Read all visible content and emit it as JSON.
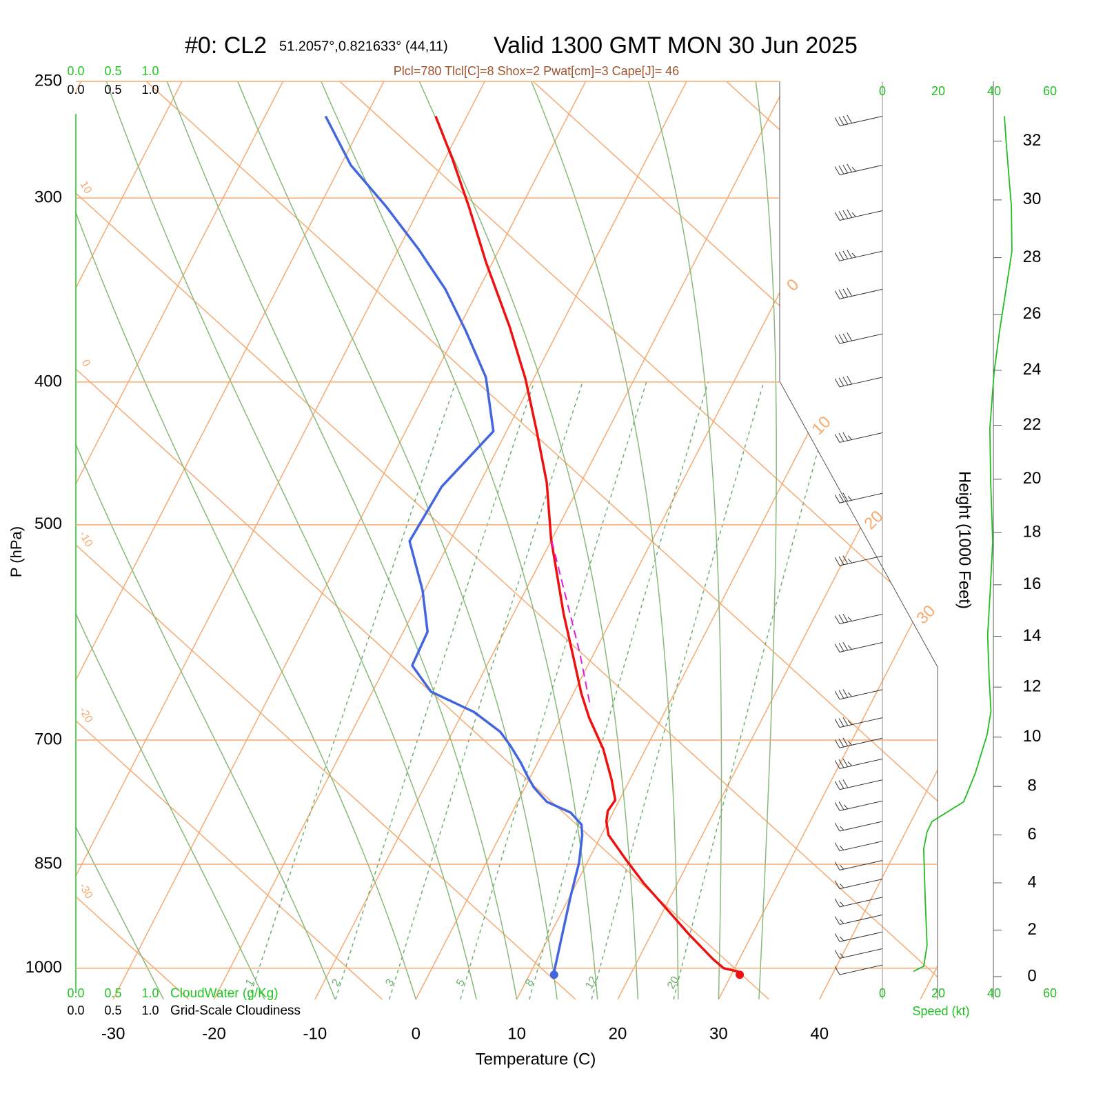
{
  "chart_data": {
    "type": "skewt",
    "title": "#0: CL2",
    "location": "51.2057°,0.821633° (44,11)",
    "valid": "Valid 1300 GMT MON 30 Jun 2025",
    "indices": "Plcl=780 Tlcl[C]=8 Shox=2 Pwat[cm]=3 Cape[J]= 46",
    "x_label": "Temperature (C)",
    "y_label": "P (hPa)",
    "xlim": [
      -33.7,
      51.7
    ],
    "ylim": [
      1050,
      250
    ],
    "log_y": true,
    "xticks": [
      -30,
      -20,
      -10,
      0,
      10,
      20,
      30,
      40
    ],
    "yticks": [
      1000,
      850,
      700,
      500,
      400,
      300,
      250
    ],
    "series": [
      {
        "color": "#ee1111",
        "pressure": [
          1006,
          1000,
          986,
          949,
          904,
          876,
          843,
          812,
          795,
          782,
          769,
          745,
          710,
          676,
          651,
          613,
          575,
          539,
          511,
          468,
          432,
          398,
          367,
          332,
          304,
          282,
          264
        ],
        "values": [
          30.7,
          28.9,
          27.4,
          23.8,
          19.5,
          16.7,
          13.6,
          10.7,
          9.8,
          9.4,
          9.6,
          8.2,
          5.8,
          2.8,
          0.8,
          -2.0,
          -5.0,
          -7.8,
          -10.1,
          -13.4,
          -17.0,
          -20.8,
          -25.0,
          -30.6,
          -35.2,
          -39.3,
          -43.1
        ]
      },
      {
        "color": "#4466dd",
        "pressure": [
          1006,
          949,
          895,
          848,
          812,
          799,
          784,
          771,
          754,
          741,
          725,
          706,
          691,
          670,
          649,
          623,
          591,
          554,
          513,
          471,
          432,
          397,
          369,
          346,
          325,
          304,
          285,
          264
        ],
        "values": [
          12.3,
          11.2,
          10.1,
          9.2,
          8.1,
          7.5,
          5.8,
          2.9,
          0.9,
          -0.3,
          -1.7,
          -3.6,
          -5.3,
          -8.9,
          -14.2,
          -17.4,
          -17.6,
          -20.2,
          -24.0,
          -23.6,
          -21.3,
          -24.8,
          -29.2,
          -33.3,
          -38.0,
          -43.4,
          -49.0,
          -54.0
        ]
      },
      {
        "color": "#e020e0",
        "dashed": true,
        "pressure": [
          513,
          610,
          665
        ],
        "values": [
          -9.9,
          -1.5,
          2.4
        ]
      }
    ],
    "isotherm_labels": [
      0,
      10,
      20,
      30
    ],
    "adiabat_labels": [
      10,
      0,
      -10,
      -20,
      -30
    ],
    "mixing_ratio_lines": [
      1,
      2,
      3,
      5,
      8,
      12,
      20
    ],
    "cloud_water": {
      "label": "CloudWater (g/Kg)",
      "color": "#1ec81e",
      "ticks": [
        {
          "value": 0,
          "label": "0.0"
        },
        {
          "value": 0.5,
          "label": "0.5"
        },
        {
          "value": 1,
          "label": "1.0"
        }
      ]
    },
    "cloudiness": {
      "label": "Grid-Scale Cloudiness",
      "color": "#000000",
      "ticks": [
        {
          "value": 0,
          "label": "0.0"
        },
        {
          "value": 0.5,
          "label": "0.5"
        },
        {
          "value": 1,
          "label": "1.0"
        }
      ]
    },
    "height": {
      "label": "Height (1000 Feet)",
      "ticks": [
        0,
        2,
        4,
        6,
        8,
        10,
        12,
        14,
        16,
        18,
        20,
        22,
        24,
        26,
        28,
        30,
        32
      ]
    },
    "speed": {
      "label": "Speed (kt)",
      "color": "#22bb22",
      "ticks": [
        0,
        20,
        40,
        60
      ],
      "pressure": [
        1005,
        997,
        965,
        895,
        830,
        808,
        795,
        771,
        737,
        694,
        669,
        634,
        594,
        551,
        513,
        468,
        430,
        394,
        369,
        326,
        304,
        276,
        264
      ],
      "values": [
        11.1,
        14.8,
        16.0,
        15.3,
        14.8,
        16.0,
        17.8,
        29.1,
        33.3,
        37.5,
        38.9,
        38.2,
        37.7,
        38.7,
        39.5,
        38.8,
        38.5,
        40.0,
        42.0,
        46.4,
        46.2,
        44.4,
        43.7
      ]
    },
    "wind": {
      "pressure": [
        264,
        285,
        306,
        326,
        346,
        371,
        397,
        433,
        476,
        525,
        575,
        601,
        647,
        676,
        698,
        721,
        745,
        770,
        795,
        820,
        845,
        870,
        895,
        920,
        945,
        970,
        995
      ],
      "speed": [
        44,
        45,
        46,
        46,
        43,
        42,
        40,
        39,
        39,
        39,
        38,
        38,
        39,
        38,
        37,
        35,
        30,
        25,
        18,
        16,
        15,
        15,
        15,
        15,
        16,
        15,
        12
      ]
    }
  }
}
